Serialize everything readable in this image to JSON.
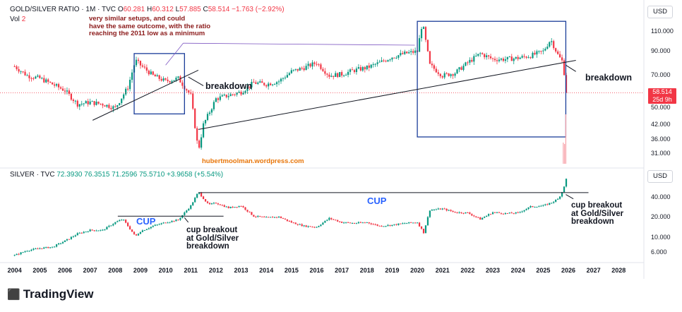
{
  "header": {
    "symbol": "GOLD/SILVER RATIO · 1M · TVC",
    "o_label": "O",
    "o_val": "60.281",
    "h_label": "H",
    "h_val": "60.312",
    "l_label": "L",
    "l_val": "57.885",
    "c_label": "C",
    "c_val": "58.514",
    "change": "−1.763 (−2.92%)",
    "vol_label": "Vol",
    "vol_val": "2"
  },
  "lower_header": {
    "symbol": "SILVER · TVC",
    "values": "72.3930  76.3515  71.2596  75.5710",
    "change": "+3.9658 (+5.54%)"
  },
  "currency": "USD",
  "price_badge": {
    "value": "58.514",
    "countdown": "25d 9h"
  },
  "annotations": {
    "note": [
      "very similar setups, and could",
      "have the same outcome, with the ratio",
      "reaching the 2011 low as a minimum"
    ],
    "breakdown_1": "breakdown",
    "breakdown_2": "breakdown",
    "watermark": "hubertmoolman.wordpress.com",
    "cup_1": "CUP",
    "cup_2": "CUP",
    "cup_breakout_1": [
      "cup breakout",
      "at Gold/Silver",
      "breakdown"
    ],
    "cup_breakout_2": [
      "cup breakout",
      "at Gold/Silver",
      "breakdown"
    ]
  },
  "brand": "TradingView",
  "colors": {
    "up": "#089981",
    "down": "#f23645",
    "box": "#1a3d99",
    "trend": "#131722",
    "note": "#8b1a1a",
    "cup": "#2962ff",
    "watermark": "#e8760a"
  },
  "chart_data": [
    {
      "type": "candlestick",
      "title": "GOLD/SILVER RATIO · 1M · TVC",
      "scale": "log",
      "ylim": [
        28,
        125
      ],
      "y_ticks": [
        110,
        90,
        70,
        50,
        42,
        36,
        31
      ],
      "x": [
        2004.0,
        2004.5,
        2005.0,
        2005.5,
        2006.0,
        2006.5,
        2007.0,
        2007.5,
        2008.0,
        2008.5,
        2008.8,
        2009.0,
        2009.5,
        2010.0,
        2010.5,
        2011.0,
        2011.3,
        2011.5,
        2012.0,
        2012.5,
        2013.0,
        2013.5,
        2014.0,
        2014.5,
        2015.0,
        2015.5,
        2016.0,
        2016.5,
        2017.0,
        2017.5,
        2018.0,
        2018.5,
        2019.0,
        2019.5,
        2020.0,
        2020.2,
        2020.5,
        2021.0,
        2021.5,
        2022.0,
        2022.5,
        2023.0,
        2023.5,
        2024.0,
        2024.5,
        2025.0,
        2025.3,
        2025.6,
        2025.8,
        2025.9
      ],
      "values": [
        77,
        70,
        68,
        64,
        60,
        52,
        53,
        52,
        50,
        62,
        82,
        78,
        70,
        66,
        68,
        57,
        32,
        42,
        55,
        57,
        59,
        65,
        64,
        66,
        73,
        76,
        80,
        70,
        71,
        74,
        76,
        80,
        85,
        88,
        90,
        122,
        78,
        70,
        72,
        80,
        88,
        83,
        83,
        84,
        86,
        90,
        102,
        86,
        80,
        58.5
      ],
      "last": 58.514
    },
    {
      "type": "candlestick",
      "title": "SILVER · TVC",
      "scale": "log",
      "ylim": [
        4.5,
        90
      ],
      "y_ticks": [
        40,
        20,
        10,
        6
      ],
      "x": [
        2004.0,
        2004.5,
        2005.0,
        2005.5,
        2006.0,
        2006.5,
        2007.0,
        2007.5,
        2008.0,
        2008.3,
        2008.8,
        2009.0,
        2009.5,
        2010.0,
        2010.5,
        2011.0,
        2011.3,
        2011.7,
        2012.0,
        2012.5,
        2013.0,
        2013.5,
        2014.0,
        2014.5,
        2015.0,
        2015.5,
        2016.0,
        2016.5,
        2017.0,
        2017.5,
        2018.0,
        2018.5,
        2019.0,
        2019.5,
        2020.0,
        2020.25,
        2020.5,
        2021.0,
        2021.5,
        2022.0,
        2022.5,
        2023.0,
        2023.5,
        2024.0,
        2024.5,
        2025.0,
        2025.3,
        2025.6,
        2025.8,
        2025.9
      ],
      "values": [
        5.5,
        6.5,
        7.0,
        7.3,
        9.0,
        11.5,
        13.0,
        13.0,
        17.0,
        19.0,
        10.5,
        12.5,
        15.0,
        17.0,
        18.5,
        30.0,
        48.0,
        31.0,
        33.0,
        28.0,
        30.0,
        21.0,
        20.0,
        20.5,
        17.0,
        15.0,
        14.5,
        19.5,
        17.0,
        16.5,
        17.0,
        15.0,
        15.5,
        16.5,
        17.0,
        12.0,
        26.0,
        27.0,
        24.0,
        23.5,
        19.0,
        24.0,
        23.0,
        23.5,
        29.0,
        30.0,
        33.0,
        38.0,
        52.0,
        75.571
      ],
      "last": 75.571
    }
  ],
  "x_axis": {
    "ticks": [
      "2004",
      "2005",
      "2006",
      "2007",
      "2008",
      "2009",
      "2010",
      "2011",
      "2012",
      "2013",
      "2014",
      "2015",
      "2016",
      "2017",
      "2018",
      "2019",
      "2020",
      "2021",
      "2022",
      "2023",
      "2024",
      "2025",
      "2026",
      "2027",
      "2028"
    ]
  }
}
